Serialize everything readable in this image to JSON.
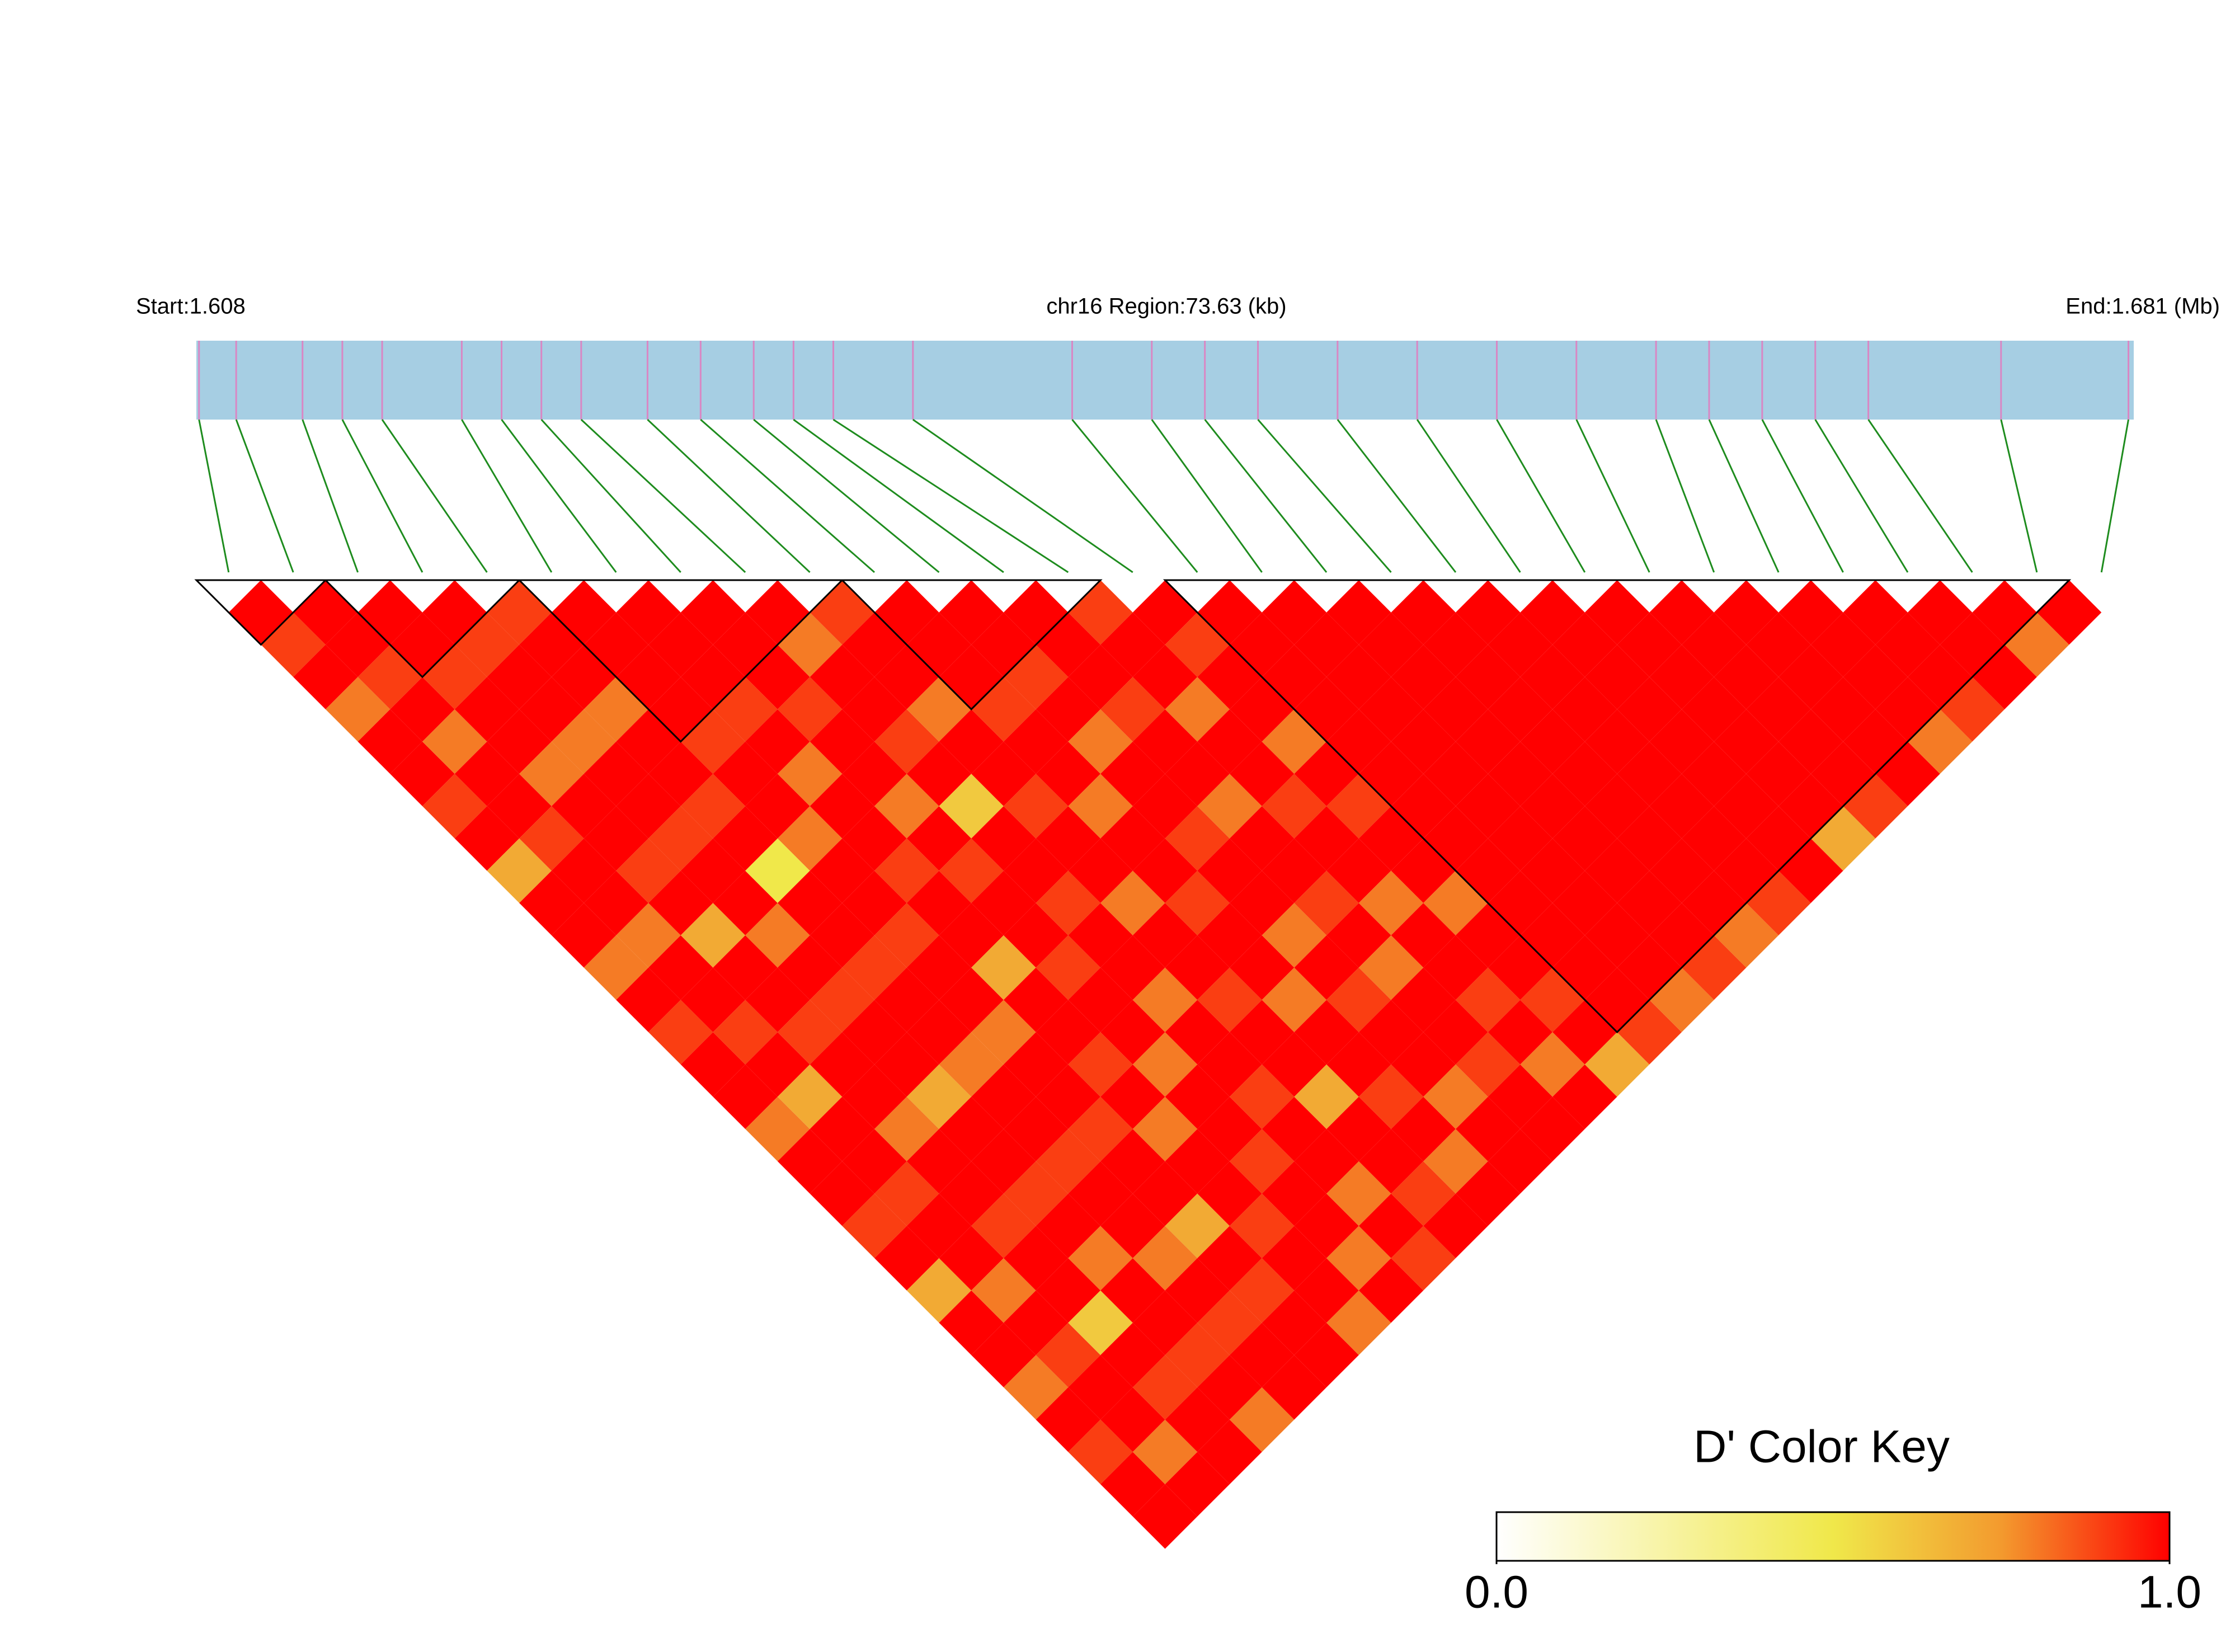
{
  "chart_data": {
    "type": "ld_heatmap",
    "start_label": "Start:1.608",
    "region_label": "chr16 Region:73.63 (kb)",
    "end_label": "End:1.681 (Mb)",
    "key_title": "D' Color Key",
    "xlim": [
      1.608,
      1.681
    ],
    "positions": [
      1.6081,
      1.6095,
      1.612,
      1.6135,
      1.615,
      1.618,
      1.6195,
      1.621,
      1.6225,
      1.625,
      1.627,
      1.629,
      1.6305,
      1.632,
      1.635,
      1.641,
      1.644,
      1.646,
      1.648,
      1.651,
      1.654,
      1.657,
      1.66,
      1.663,
      1.665,
      1.667,
      1.669,
      1.671,
      1.676,
      1.6808
    ],
    "track_color": "#a6cee3",
    "snp_color": "#d987c4",
    "link_color": "#1e8c1e",
    "block_color": "#000000",
    "matrix": [
      [
        1,
        0.9,
        1,
        0.8,
        1,
        1,
        0.9,
        1,
        0.7,
        1,
        1,
        0.8,
        1,
        0.9,
        1,
        1,
        0.8,
        1,
        1,
        0.9,
        1,
        0.7,
        1,
        1,
        0.8,
        1,
        0.9,
        1,
        1
      ],
      [
        1,
        1,
        0.9,
        1,
        0.8,
        1,
        1,
        0.9,
        1,
        1,
        0.8,
        1,
        1,
        0.9,
        1,
        0.7,
        1,
        1,
        0.9,
        1,
        1,
        0.8,
        1,
        0.9,
        1,
        1,
        0.8,
        1
      ],
      [
        1,
        1,
        0.9,
        1,
        1,
        0.8,
        1,
        1,
        0.9,
        1,
        0.7,
        1,
        1,
        0.9,
        1,
        1,
        0.8,
        1,
        1,
        0.9,
        1,
        1,
        0.6,
        1,
        0.9,
        1,
        1
      ],
      [
        1,
        0.9,
        1,
        1,
        0.8,
        1,
        1,
        0.9,
        1,
        1,
        0.8,
        1,
        0.9,
        1,
        1,
        0.7,
        1,
        1,
        0.9,
        1,
        0.8,
        1,
        1,
        0.9,
        1,
        0.8
      ],
      [
        0.9,
        1,
        1,
        0.8,
        1,
        1,
        0.9,
        1,
        0.5,
        1,
        1,
        0.9,
        1,
        1,
        0.8,
        1,
        1,
        0.9,
        1,
        1,
        0.8,
        1,
        0.9,
        1,
        1
      ],
      [
        1,
        1,
        1,
        1,
        0.9,
        1,
        1,
        0.8,
        1,
        1,
        0.9,
        1,
        1,
        0.8,
        1,
        1,
        0.9,
        1,
        1,
        0.7,
        1,
        0.9,
        1,
        1
      ],
      [
        1,
        1,
        1,
        0.9,
        1,
        0.8,
        1,
        1,
        0.9,
        1,
        1,
        0.7,
        1,
        1,
        0.9,
        1,
        0.8,
        1,
        1,
        0.9,
        1,
        1,
        0.8
      ],
      [
        1,
        1,
        1,
        0.9,
        1,
        1,
        0.8,
        1,
        0.9,
        1,
        1,
        0.9,
        1,
        1,
        0.8,
        1,
        1,
        0.9,
        1,
        1,
        0.8,
        1
      ],
      [
        1,
        0.8,
        1,
        1,
        0.9,
        1,
        0.6,
        1,
        1,
        0.9,
        1,
        1,
        0.8,
        1,
        1,
        0.9,
        1,
        1,
        0.8,
        1,
        0.9
      ],
      [
        0.9,
        1,
        1,
        0.8,
        1,
        1,
        0.9,
        1,
        1,
        0.8,
        1,
        1,
        0.9,
        1,
        1,
        0.7,
        1,
        1,
        0.9,
        1
      ],
      [
        1,
        1,
        1,
        0.9,
        1,
        1,
        0.8,
        1,
        1,
        0.9,
        1,
        1,
        0.8,
        1,
        1,
        0.9,
        1,
        0.8,
        1
      ],
      [
        1,
        1,
        0.9,
        1,
        0.8,
        1,
        1,
        0.9,
        1,
        1,
        0.8,
        1,
        0.9,
        1,
        1,
        0.8,
        1,
        1
      ],
      [
        1,
        1,
        1,
        0.9,
        1,
        1,
        0.8,
        1,
        1,
        0.9,
        1,
        0.8,
        1,
        1,
        0.9,
        1,
        1
      ],
      [
        0.9,
        1,
        1,
        0.8,
        1,
        1,
        0.9,
        1,
        1,
        0.8,
        1,
        1,
        0.9,
        1,
        0.8,
        1
      ],
      [
        1,
        0.9,
        1,
        1,
        0.8,
        1,
        0.9,
        1,
        1,
        0.8,
        1,
        1,
        0.9,
        1,
        0.7
      ],
      [
        1,
        1,
        1,
        1,
        1,
        1,
        1,
        1,
        1,
        1,
        1,
        1,
        1,
        0.9
      ],
      [
        1,
        1,
        1,
        1,
        1,
        1,
        1,
        1,
        1,
        1,
        1,
        1,
        0.8
      ],
      [
        1,
        1,
        1,
        1,
        1,
        1,
        1,
        1,
        1,
        1,
        1,
        0.9
      ],
      [
        1,
        1,
        1,
        1,
        1,
        1,
        1,
        1,
        1,
        1,
        0.8
      ],
      [
        1,
        1,
        1,
        1,
        1,
        1,
        1,
        1,
        1,
        0.9
      ],
      [
        1,
        1,
        1,
        1,
        1,
        1,
        1,
        1,
        1
      ],
      [
        1,
        1,
        1,
        1,
        1,
        1,
        1,
        0.7
      ],
      [
        1,
        1,
        1,
        1,
        1,
        1,
        0.9
      ],
      [
        1,
        1,
        1,
        1,
        1,
        1
      ],
      [
        1,
        1,
        1,
        1,
        0.8
      ],
      [
        1,
        1,
        1,
        0.9
      ],
      [
        1,
        1,
        1
      ],
      [
        1,
        0.8
      ],
      [
        1
      ]
    ],
    "blocks": [
      [
        0,
        1
      ],
      [
        2,
        4
      ],
      [
        5,
        9
      ],
      [
        10,
        13
      ],
      [
        15,
        28
      ]
    ],
    "colorscale": [
      {
        "value": 0,
        "color": "#ffffff"
      },
      {
        "value": 0.5,
        "color": "#f0e84a"
      },
      {
        "value": 0.75,
        "color": "#f39a2e"
      },
      {
        "value": 1,
        "color": "#ff0000"
      }
    ],
    "colorbar_lim": [
      0,
      1
    ],
    "colorbar_ticks": [
      {
        "value": 0,
        "label": "0.0"
      },
      {
        "value": 1,
        "label": "1.0"
      }
    ]
  }
}
